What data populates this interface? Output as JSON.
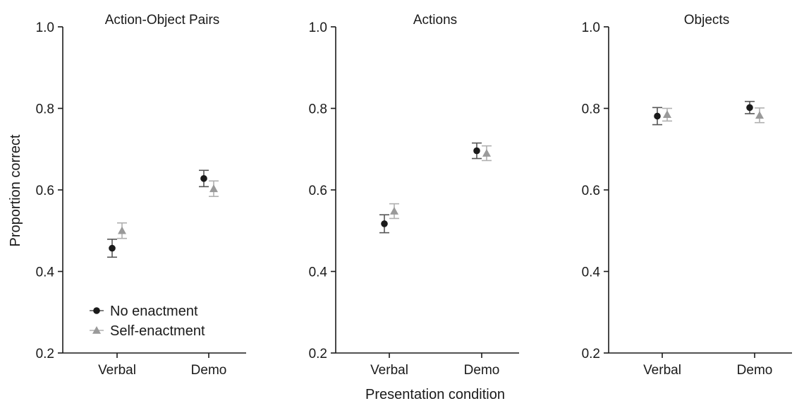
{
  "figure": {
    "ylabel": "Proportion correct",
    "xlabel": "Presentation condition"
  },
  "chart_data": [
    {
      "type": "scatter",
      "title": "Action-Object Pairs",
      "categories": [
        "Verbal",
        "Demo"
      ],
      "ylim": [
        0.2,
        1.0
      ],
      "yticks": [
        "0.2",
        "0.4",
        "0.6",
        "0.8",
        "1.0"
      ],
      "legend": "bottom-left",
      "series": [
        {
          "name": "No enactment",
          "marker": "circle",
          "color": "#1a1a1a",
          "bar_color": "#555555",
          "values": [
            0.457,
            0.628
          ],
          "err_low": [
            0.435,
            0.608
          ],
          "err_high": [
            0.479,
            0.648
          ]
        },
        {
          "name": "Self-enactment",
          "marker": "triangle",
          "color": "#9a9a9a",
          "bar_color": "#b0b0b0",
          "values": [
            0.5,
            0.603
          ],
          "err_low": [
            0.481,
            0.584
          ],
          "err_high": [
            0.519,
            0.622
          ]
        }
      ]
    },
    {
      "type": "scatter",
      "title": "Actions",
      "categories": [
        "Verbal",
        "Demo"
      ],
      "ylim": [
        0.2,
        1.0
      ],
      "yticks": [
        "0.2",
        "0.4",
        "0.6",
        "0.8",
        "1.0"
      ],
      "series": [
        {
          "name": "No enactment",
          "marker": "circle",
          "color": "#1a1a1a",
          "bar_color": "#555555",
          "values": [
            0.517,
            0.696
          ],
          "err_low": [
            0.495,
            0.677
          ],
          "err_high": [
            0.539,
            0.715
          ]
        },
        {
          "name": "Self-enactment",
          "marker": "triangle",
          "color": "#9a9a9a",
          "bar_color": "#b0b0b0",
          "values": [
            0.548,
            0.69
          ],
          "err_low": [
            0.53,
            0.672
          ],
          "err_high": [
            0.566,
            0.708
          ]
        }
      ]
    },
    {
      "type": "scatter",
      "title": "Objects",
      "categories": [
        "Verbal",
        "Demo"
      ],
      "ylim": [
        0.2,
        1.0
      ],
      "yticks": [
        "0.2",
        "0.4",
        "0.6",
        "0.8",
        "1.0"
      ],
      "series": [
        {
          "name": "No enactment",
          "marker": "circle",
          "color": "#1a1a1a",
          "bar_color": "#555555",
          "values": [
            0.781,
            0.802
          ],
          "err_low": [
            0.76,
            0.787
          ],
          "err_high": [
            0.802,
            0.817
          ]
        },
        {
          "name": "Self-enactment",
          "marker": "triangle",
          "color": "#9a9a9a",
          "bar_color": "#b0b0b0",
          "values": [
            0.785,
            0.783
          ],
          "err_low": [
            0.769,
            0.765
          ],
          "err_high": [
            0.8,
            0.801
          ]
        }
      ]
    }
  ]
}
